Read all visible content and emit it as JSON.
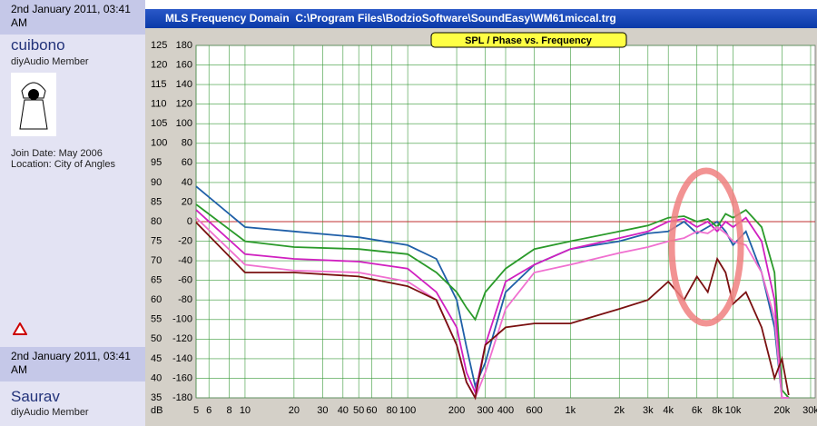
{
  "sidebar": {
    "posts": [
      {
        "date": "2nd January 2011, 03:41 AM",
        "user": "cuibono",
        "role": "diyAudio Member",
        "join": "Join Date: May 2006",
        "location": "Location: City of Angles"
      },
      {
        "date": "2nd January 2011, 03:41 AM",
        "user": "Saurav",
        "role": "diyAudio Member"
      }
    ]
  },
  "window": {
    "title": "MLS Frequency Domain  C:\\Program Files\\BodzioSoftware\\SoundEasy\\WM61miccal.trg"
  },
  "chart_data": {
    "type": "line",
    "title": "SPL / Phase vs. Frequency",
    "ylabel": "dB",
    "log_x": true,
    "grid": true,
    "xlim": [
      5,
      32000
    ],
    "ylim": [
      35,
      125
    ],
    "y2lim": [
      -180,
      180
    ],
    "xticks": [
      5,
      6,
      8,
      10,
      20,
      30,
      40,
      50,
      60,
      80,
      100,
      200,
      300,
      400,
      600,
      {
        "value": 1000,
        "label": "1k"
      },
      {
        "value": 2000,
        "label": "2k"
      },
      {
        "value": 3000,
        "label": "3k"
      },
      {
        "value": 4000,
        "label": "4k"
      },
      {
        "value": 6000,
        "label": "6k"
      },
      {
        "value": 8000,
        "label": "8k"
      },
      {
        "value": 10000,
        "label": "10k"
      },
      {
        "value": 20000,
        "label": "20k"
      },
      {
        "value": 30000,
        "label": "30k"
      }
    ],
    "yticks": [
      35,
      40,
      45,
      50,
      55,
      60,
      65,
      70,
      75,
      80,
      85,
      90,
      95,
      100,
      105,
      110,
      115,
      120,
      125
    ],
    "y2ticks": [
      -180,
      -160,
      -140,
      -120,
      -100,
      -80,
      -60,
      -40,
      -20,
      0,
      20,
      40,
      60,
      80,
      100,
      120,
      140,
      160,
      180
    ],
    "x": [
      5,
      10,
      20,
      50,
      100,
      150,
      200,
      230,
      260,
      300,
      400,
      600,
      1000,
      2000,
      3000,
      4000,
      5000,
      6000,
      7000,
      8000,
      9000,
      10000,
      12000,
      15000,
      18000,
      20000,
      22000
    ],
    "series": [
      {
        "color": "#1f5fa8",
        "values": [
          89,
          78.6,
          77.5,
          76,
          74,
          70.5,
          60,
          48,
          38,
          44,
          62,
          69,
          73,
          75,
          77,
          77.5,
          80,
          77,
          78.6,
          80,
          77.5,
          74,
          77.5,
          67,
          53,
          35,
          35
        ]
      },
      {
        "color": "#2a9a2a",
        "values": [
          84.4,
          75,
          73.5,
          73,
          71.7,
          67,
          62,
          58,
          55,
          62,
          68,
          73,
          75,
          77.5,
          79,
          81,
          81.4,
          80,
          80.7,
          78.6,
          82,
          81,
          83,
          78.6,
          67,
          37,
          35
        ]
      },
      {
        "color": "#d020c0",
        "values": [
          83,
          71.7,
          70.5,
          69.8,
          68,
          62,
          53,
          41.5,
          36.4,
          48.5,
          64.7,
          69,
          73,
          75.8,
          77.5,
          80,
          80.7,
          78.6,
          80,
          77.5,
          80,
          78.6,
          81,
          75,
          60,
          35,
          35
        ]
      },
      {
        "color": "#f070d0",
        "values": [
          81,
          69,
          67.5,
          67,
          64.7,
          60,
          48.5,
          39,
          35,
          41.5,
          57.7,
          67,
          69,
          72,
          73.5,
          75,
          75.8,
          77.5,
          77,
          78.6,
          77,
          75,
          74,
          67,
          55.4,
          35,
          35
        ]
      },
      {
        "color": "#7a1010",
        "values": [
          79.8,
          67,
          67,
          66,
          63.5,
          60,
          48.5,
          39,
          35,
          48.5,
          53,
          54,
          54,
          57.7,
          60,
          64.7,
          60,
          66,
          62,
          70.5,
          67,
          59,
          62,
          53,
          40,
          45,
          35.7
        ]
      }
    ],
    "reference_line": 80
  }
}
